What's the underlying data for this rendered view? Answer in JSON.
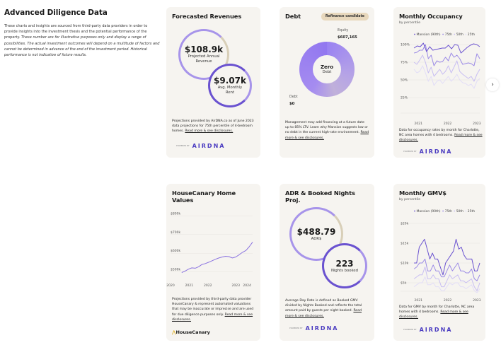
{
  "intro": {
    "title": "Advanced Diligence Data",
    "text_plain": "These charts and insights are sourced from third-party data providers in order to provide insights into the investment thesis and the potential performance of the property.",
    "text_italic": "These number are for illustrative purposes only and display a range of possibilities. The actual investment outcomes will depend on a multitude of factors and cannot be determined in advance of the end of the investment period. Historical performance is not indicative of future results."
  },
  "colors": {
    "accent": "#7b61e0",
    "dark_accent": "#4b3cc1",
    "card_bg": "#f6f4f0",
    "badge_bg": "#e8d8bd"
  },
  "read_more": "Read more & see disclosures.",
  "airdna": {
    "powered": "POWERED BY",
    "name": "AIRDNA"
  },
  "revenues": {
    "title": "Forecasted Revenues",
    "annual_value": "$108.9k",
    "annual_label": "Projected Annual Revenue",
    "monthly_value": "$9.07k",
    "monthly_label": "Avg. Monthly Rent",
    "note": "Projections provided by AirDNA.co as of June 2023 data projections for 75th percentile of 4-bedroom homes."
  },
  "debt": {
    "title": "Debt",
    "badge": "Refinance candidate",
    "equity_label": "Equity",
    "equity_value": "$607,165",
    "center_value": "Zero",
    "center_label": "Debt",
    "debt_label": "Debt",
    "debt_value": "$0",
    "note": "Management may add financing at a future date up to 85% LTV. Learn why Mansion suggests low or no debt in the current high-rate environment."
  },
  "adr": {
    "title": "ADR & Booked Nights Proj.",
    "adr_value": "$488.79",
    "adr_label": "ADR$",
    "nights_value": "223",
    "nights_label": "Nights booked",
    "note": "Average Day Rate is defined as Booked GMV divided by Nights Booked and reflects the total amount paid by guests per night booked."
  },
  "housecanary": {
    "brand": "HouseCanary",
    "note": "Projections provided by third-party data provider HouseCanary & represent automated valuations that may be inaccurate or imprecise and are used for due diligence purposes only."
  },
  "occupancy": {
    "note": "Data for occupancy rates by month for Charlotte, NC area homes with 4 bedrooms."
  },
  "gmv": {
    "note": "Data for GMV by month for Charlotte, NC area homes with 4 bedrooms."
  },
  "chart_data": [
    {
      "id": "occupancy",
      "type": "line",
      "title": "Monthly Occupancy",
      "subtitle": "by percentile",
      "ylim": [
        25,
        100
      ],
      "yticks": [
        "100%",
        "75%",
        "50%",
        "25%"
      ],
      "ytick_values": [
        100,
        75,
        50,
        25
      ],
      "xticks": [
        "2021",
        "2022",
        "2023"
      ],
      "xtick_values": [
        2021,
        2022,
        2023
      ],
      "xlim": [
        2020.8,
        2023.1
      ],
      "legend": "top",
      "series": [
        {
          "name": "Mansion (90th)",
          "color": "#6a52d0",
          "x_start": 2020.85,
          "x_end": 2023.1,
          "values": [
            95,
            98,
            97,
            102,
            90,
            97,
            92,
            93,
            94,
            95,
            95,
            99,
            94,
            100,
            99,
            88,
            92,
            96,
            99,
            101,
            100,
            97
          ]
        },
        {
          "name": "75th",
          "color": "#9b8ae6",
          "x_start": 2020.85,
          "x_end": 2023.1,
          "values": [
            88,
            89,
            92,
            92,
            100,
            80,
            85,
            70,
            77,
            75,
            76,
            82,
            77,
            88,
            82,
            85,
            80,
            72,
            73,
            74,
            73,
            70,
            87,
            80
          ]
        },
        {
          "name": "50th",
          "color": "#c8bef2",
          "x_start": 2020.85,
          "x_end": 2023.1,
          "values": [
            75,
            72,
            78,
            85,
            75,
            60,
            68,
            55,
            60,
            65,
            58,
            62,
            70,
            60,
            68,
            77,
            62,
            58,
            55,
            52,
            55,
            48,
            58,
            65
          ]
        },
        {
          "name": "25th",
          "color": "#e2ddf7",
          "x_start": 2020.85,
          "x_end": 2023.1,
          "values": [
            65,
            60,
            62,
            70,
            60,
            48,
            55,
            42,
            48,
            50,
            45,
            50,
            55,
            48,
            52,
            58,
            50,
            46,
            45,
            42,
            44,
            38,
            48,
            52
          ]
        }
      ]
    },
    {
      "id": "gmv",
      "type": "line",
      "title": "Monthly GMV$",
      "subtitle": "by percentile",
      "ylim": [
        2.5,
        20
      ],
      "yticks": [
        "$20k",
        "$15k",
        "$10k",
        "$5k"
      ],
      "ytick_values": [
        20,
        15,
        10,
        5
      ],
      "xticks": [
        "2021",
        "2022",
        "2023"
      ],
      "xtick_values": [
        2021,
        2022,
        2023
      ],
      "xlim": [
        2020.8,
        2023.1
      ],
      "legend": "top",
      "series": [
        {
          "name": "Mansion (90th)",
          "color": "#6a52d0",
          "x_start": 2020.85,
          "x_end": 2023.1,
          "values": [
            10,
            10,
            14,
            15,
            16,
            13.5,
            11,
            12.5,
            11,
            11,
            9,
            7,
            10,
            11,
            12,
            13,
            16,
            13.5,
            14,
            12,
            11,
            11,
            11,
            8,
            8,
            10
          ]
        },
        {
          "name": "75th",
          "color": "#9b8ae6",
          "x_start": 2020.85,
          "x_end": 2023.1,
          "values": [
            8.5,
            9,
            10,
            10,
            11,
            8,
            8,
            9.5,
            8,
            8,
            6.5,
            6.5,
            8,
            9.5,
            8,
            9,
            10,
            8,
            8,
            7.5,
            7.5,
            8.5,
            6,
            5.5,
            7
          ]
        },
        {
          "name": "50th",
          "color": "#c8bef2",
          "x_start": 2020.85,
          "x_end": 2023.1,
          "values": [
            6,
            6.5,
            7,
            7,
            9,
            6,
            6,
            7,
            6,
            6,
            4,
            4,
            5.5,
            7,
            6,
            6.5,
            7,
            5.5,
            5.5,
            5,
            5.5,
            6,
            4,
            3,
            5
          ]
        },
        {
          "name": "25th",
          "color": "#e2ddf7",
          "x_start": 2020.85,
          "x_end": 2023.1,
          "values": [
            4,
            4.5,
            5,
            5,
            6.5,
            4.5,
            4.5,
            5,
            4,
            4,
            3,
            3,
            4,
            5,
            4.5,
            5,
            5,
            4,
            4,
            3.5,
            4,
            4.5,
            3,
            2.5,
            3.5
          ]
        }
      ]
    },
    {
      "id": "homevalues",
      "type": "line",
      "title": "HouseCanary Home Values",
      "ylim": [
        480,
        820
      ],
      "yticks": [
        "$800k",
        "$700k",
        "$600k",
        "$500k"
      ],
      "ytick_values": [
        800,
        700,
        600,
        500
      ],
      "xticks": [
        "2020",
        "2021",
        "2022",
        "2023",
        "2024"
      ],
      "xtick_values": [
        2020,
        2021,
        2022,
        2023.5,
        2024.1
      ],
      "xlim": [
        2020,
        2024.4
      ],
      "series": [
        {
          "color": "#8a72e0",
          "x_start": 2020.6,
          "x_end": 2024.4,
          "values": [
            497,
            505,
            515,
            522,
            520,
            528,
            540,
            545,
            552,
            560,
            568,
            575,
            580,
            584,
            582,
            575,
            580,
            592,
            605,
            615,
            635,
            660
          ]
        }
      ]
    }
  ]
}
